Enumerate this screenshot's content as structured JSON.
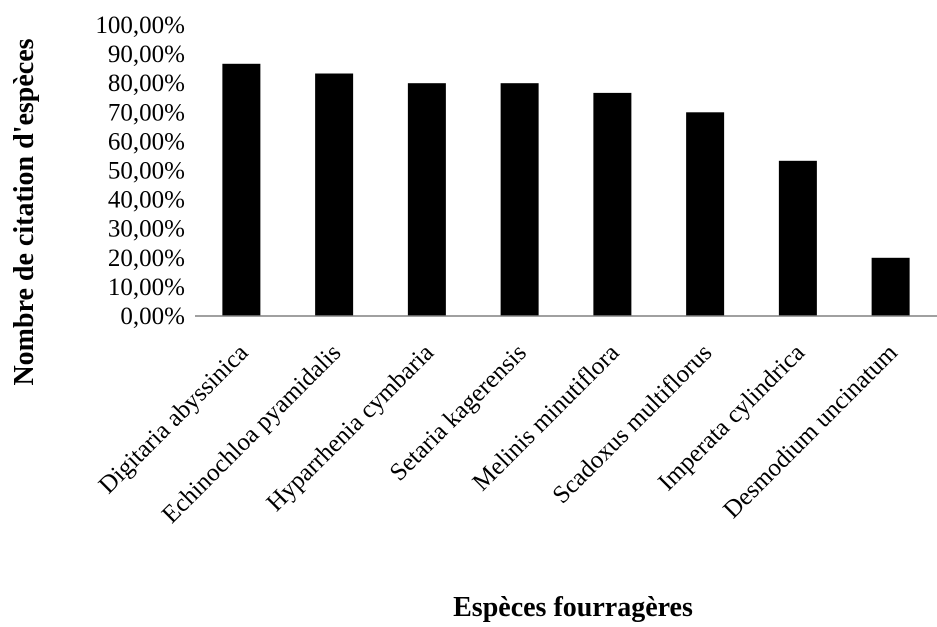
{
  "chart_data": {
    "type": "bar",
    "title": "",
    "xlabel": "Espèces fourragères",
    "ylabel": "Nombre de citation d'espèces",
    "categories": [
      "Digitaria abyssinica",
      "Echinochloa pyamidalis",
      "Hyparrhenia cymbaria",
      "Setaria kagerensis",
      "Melinis minutiflora",
      "Scadoxus multiflorus",
      "Imperata cylindrica",
      "Desmodium uncinatum"
    ],
    "values": [
      86.67,
      83.33,
      80.0,
      80.0,
      76.67,
      70.0,
      53.33,
      20.0
    ],
    "ylim": [
      0,
      100
    ],
    "yticks": [
      0,
      10,
      20,
      30,
      40,
      50,
      60,
      70,
      80,
      90,
      100
    ],
    "ytick_labels": [
      "0,00%",
      "10,00%",
      "20,00%",
      "30,00%",
      "40,00%",
      "50,00%",
      "60,00%",
      "70,00%",
      "80,00%",
      "90,00%",
      "100,00%"
    ],
    "grid": false,
    "legend": "none",
    "bar_color": "#000000"
  }
}
